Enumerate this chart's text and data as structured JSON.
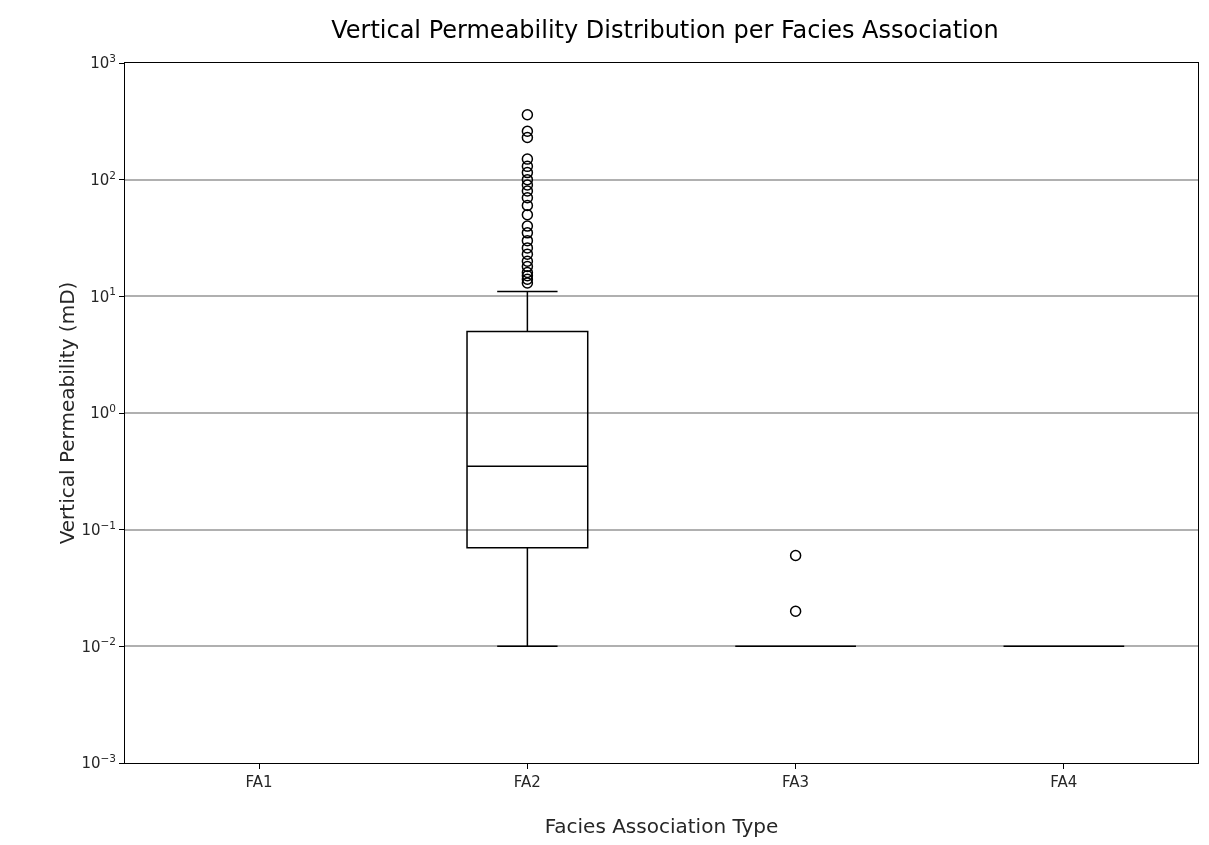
{
  "chart_data": {
    "type": "box",
    "title": "Vertical Permeability Distribution per Facies Association",
    "xlabel": "Facies Association Type",
    "ylabel": "Vertical Permeability (mD)",
    "categories": [
      "FA1",
      "FA2",
      "FA3",
      "FA4"
    ],
    "boxes": [
      null,
      {
        "low": 0.01,
        "q1": 0.07,
        "median": 0.35,
        "q3": 5,
        "high": 11,
        "outliers": [
          360,
          260,
          230,
          150,
          130,
          115,
          100,
          90,
          80,
          70,
          60,
          50,
          40,
          35,
          30,
          26,
          23,
          20,
          18,
          16,
          15,
          14,
          13
        ]
      },
      {
        "low": 0.01,
        "q1": 0.01,
        "median": 0.01,
        "q3": 0.01,
        "high": 0.01,
        "outliers": [
          0.06,
          0.02
        ]
      },
      {
        "low": 0.01,
        "q1": 0.01,
        "median": 0.01,
        "q3": 0.01,
        "high": 0.01
      }
    ],
    "color": "#000000",
    "log": "y",
    "ylim": [
      0.001,
      1000
    ],
    "yticks": [
      {
        "value": 0.001,
        "label": "10$^{−3}$"
      },
      {
        "value": 0.01,
        "label": "10$^{−2}$"
      },
      {
        "value": 0.1,
        "label": "10$^{−1}$"
      },
      {
        "value": 1,
        "label": "10$^{0}$"
      },
      {
        "value": 10,
        "label": "10$^{1}$"
      },
      {
        "value": 100,
        "label": "10$^{2}$"
      },
      {
        "value": 1000,
        "label": "10$^{3}$"
      }
    ],
    "grid": "y",
    "marker": "circle",
    "legend": false
  }
}
